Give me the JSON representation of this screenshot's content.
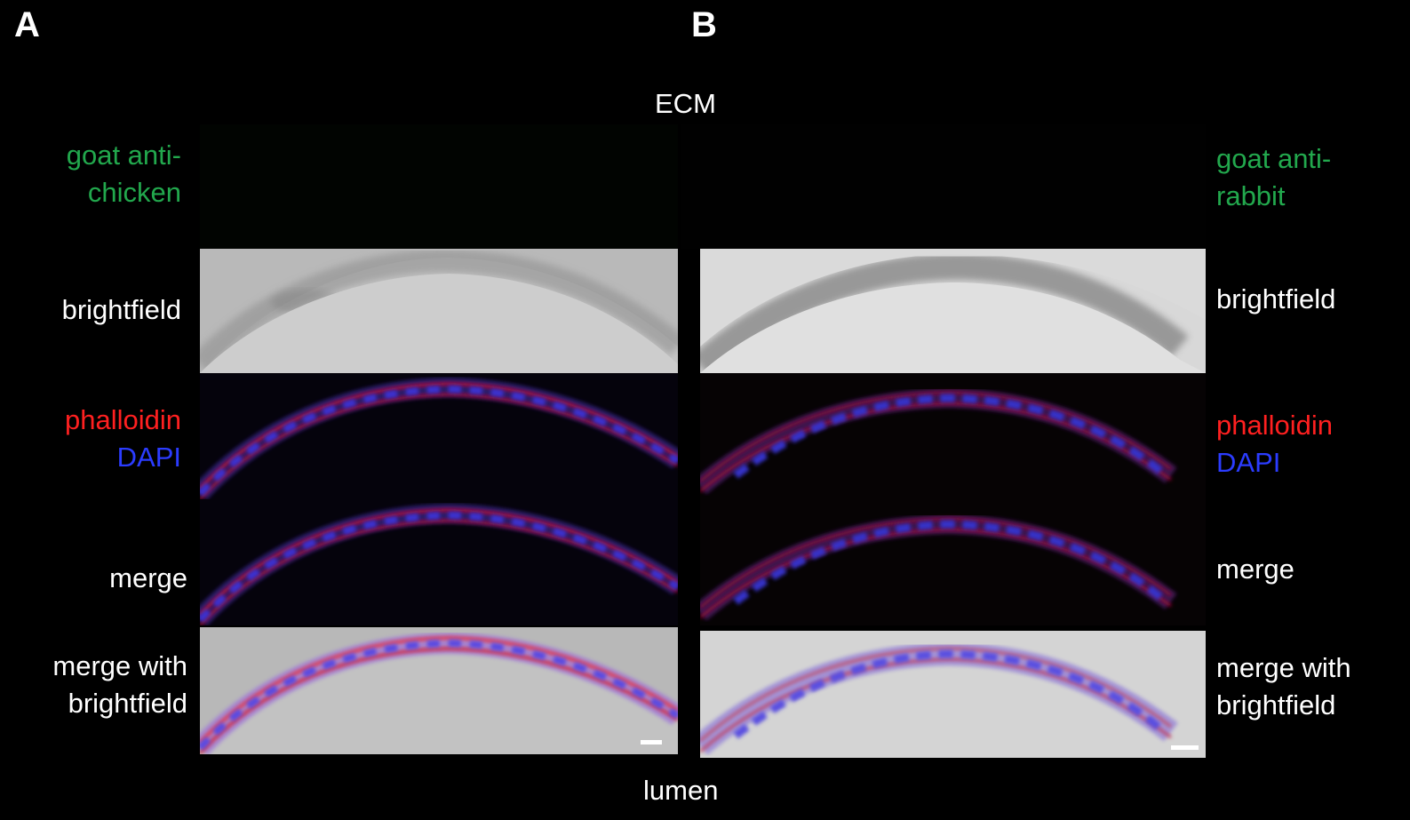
{
  "panels": {
    "a": "A",
    "b": "B"
  },
  "header": "ECM",
  "footer": "lumen",
  "left_labels": {
    "secondary": [
      "goat anti-",
      "chicken"
    ],
    "brightfield": "brightfield",
    "phalloidin": "phalloidin",
    "dapi": "DAPI",
    "merge": "merge",
    "merge_bf": [
      "merge with",
      "brightfield"
    ]
  },
  "right_labels": {
    "secondary": [
      "goat anti-",
      "rabbit"
    ],
    "brightfield": "brightfield",
    "phalloidin": "phalloidin",
    "dapi": "DAPI",
    "merge": "merge",
    "merge_bf": [
      "merge with",
      "brightfield"
    ]
  },
  "colors": {
    "secondary_label": "#22a84d",
    "phalloidin": "#ff2020",
    "dapi": "#2b3cff"
  }
}
